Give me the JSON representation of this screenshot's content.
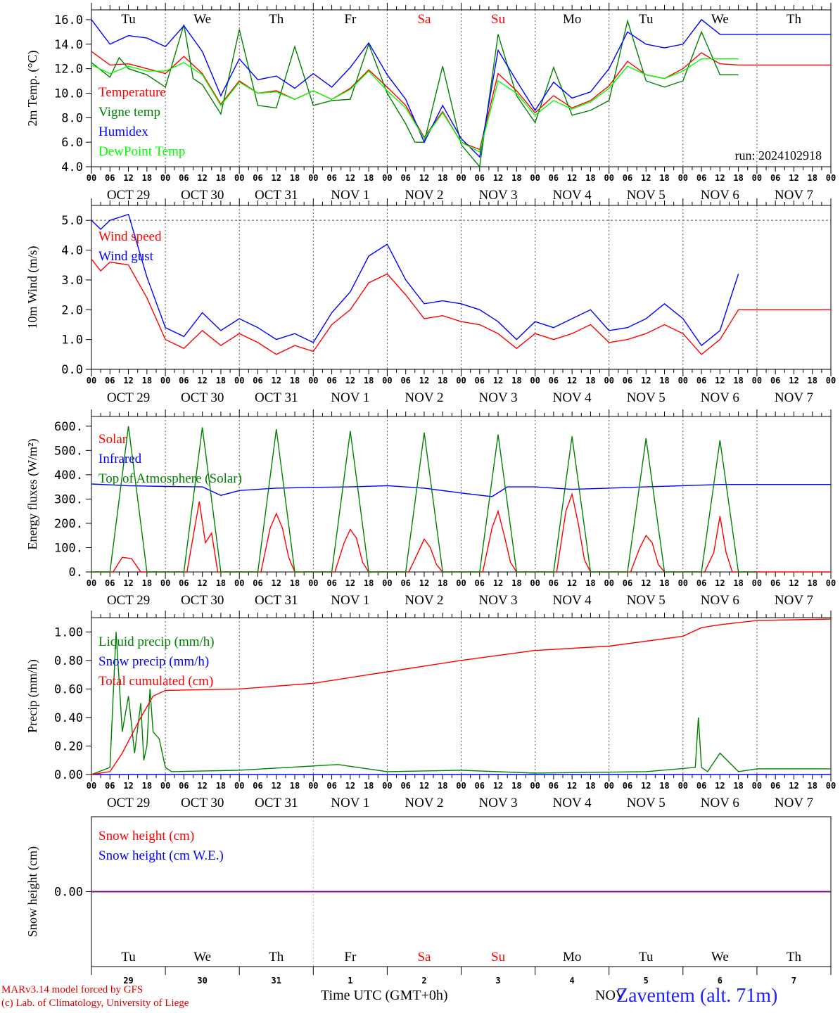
{
  "run_label": "run: 2024102918",
  "day_names": [
    {
      "text": "Tu",
      "color": "#000000"
    },
    {
      "text": "We",
      "color": "#000000"
    },
    {
      "text": "Th",
      "color": "#000000"
    },
    {
      "text": "Fr",
      "color": "#000000"
    },
    {
      "text": "Sa",
      "color": "#ff0000"
    },
    {
      "text": "Su",
      "color": "#ff0000"
    },
    {
      "text": "Mo",
      "color": "#000000"
    },
    {
      "text": "Tu",
      "color": "#000000"
    },
    {
      "text": "We",
      "color": "#000000"
    },
    {
      "text": "Th",
      "color": "#000000"
    }
  ],
  "date_labels": [
    "OCT 29",
    "OCT 30",
    "OCT 31",
    "NOV  1",
    "NOV  2",
    "NOV  3",
    "NOV  4",
    "NOV  5",
    "NOV  6",
    "NOV  7"
  ],
  "hour_ticks": [
    "00",
    "06",
    "12",
    "18"
  ],
  "hour_end": "00",
  "bottom_day_numbers": [
    "29",
    "30",
    "31",
    "1",
    "2",
    "3",
    "4",
    "5",
    "6",
    "7"
  ],
  "footer": {
    "model_line1": "MARv3.14 model forced by GFS",
    "model_line2": "(c) Lab. of Climatology, University of Liege",
    "time_label": "Time UTC (GMT+0h)",
    "month_label": "NOV",
    "station": "Zaventem (alt. 71m)"
  },
  "chart_data": [
    {
      "type": "line",
      "ylabel": "2m Temp. (°C)",
      "ylim": [
        4.0,
        16.8
      ],
      "yticks": [
        "4.0",
        "6.0",
        "8.0",
        "10.0",
        "12.0",
        "14.0",
        "16.0"
      ],
      "ytick_values": [
        4,
        6,
        8,
        10,
        12,
        14,
        16
      ],
      "x_unit": "hours since OCT 29 00 UTC",
      "series": [
        {
          "name": "Temperature",
          "color": "#ff0000",
          "x": [
            0,
            6,
            12,
            18,
            24,
            30,
            36,
            42,
            48,
            54,
            60,
            66,
            72,
            78,
            84,
            90,
            96,
            102,
            108,
            114,
            120,
            126,
            132,
            138,
            144,
            150,
            156,
            162,
            168,
            174,
            180,
            186,
            192,
            198,
            204,
            210,
            216,
            222,
            228,
            234,
            240
          ],
          "y": [
            13.4,
            12.3,
            12.4,
            12.0,
            11.6,
            13.0,
            11.6,
            9.1,
            11.0,
            10.0,
            10.2,
            9.5,
            10.2,
            9.5,
            10.4,
            11.9,
            10.5,
            9.0,
            6.4,
            8.5,
            6.0,
            5.4,
            11.6,
            10.2,
            8.4,
            9.8,
            8.8,
            9.4,
            10.6,
            12.6,
            11.5,
            11.2,
            12.0,
            13.3,
            12.4,
            12.3,
            12.3,
            12.3,
            12.3,
            12.3,
            12.3
          ]
        },
        {
          "name": "Vigne temp",
          "color": "#008000",
          "x": [
            0,
            6,
            9,
            12,
            18,
            24,
            30,
            33,
            36,
            42,
            48,
            54,
            60,
            66,
            72,
            78,
            84,
            90,
            96,
            102,
            105,
            108,
            114,
            120,
            126,
            132,
            138,
            144,
            150,
            156,
            162,
            168,
            174,
            180,
            186,
            192,
            198,
            204,
            210
          ],
          "y": [
            12.5,
            11.3,
            12.9,
            12.0,
            11.5,
            10.5,
            15.6,
            11.2,
            10.7,
            8.3,
            15.2,
            9.0,
            8.8,
            13.8,
            9.0,
            9.4,
            9.5,
            14.0,
            10.0,
            7.5,
            6.0,
            6.0,
            12.2,
            5.8,
            4.0,
            14.8,
            9.8,
            7.6,
            12.1,
            8.2,
            8.6,
            9.4,
            15.9,
            11.0,
            10.5,
            11.0,
            15.0,
            11.5,
            11.5
          ]
        },
        {
          "name": "Humidex",
          "color": "#0000ff",
          "x": [
            0,
            6,
            12,
            18,
            24,
            30,
            36,
            42,
            48,
            54,
            60,
            66,
            72,
            78,
            84,
            90,
            96,
            102,
            108,
            114,
            120,
            126,
            132,
            138,
            144,
            150,
            156,
            162,
            168,
            174,
            180,
            186,
            192,
            198,
            204,
            210,
            216,
            222,
            228,
            234,
            240
          ],
          "y": [
            16.0,
            14.0,
            14.7,
            14.5,
            13.8,
            15.5,
            13.4,
            9.8,
            12.8,
            11.1,
            11.4,
            10.4,
            11.6,
            10.5,
            12.1,
            14.1,
            11.5,
            9.5,
            6.0,
            9.0,
            6.3,
            4.8,
            13.5,
            11.0,
            8.6,
            10.9,
            9.6,
            10.1,
            12.0,
            15.0,
            14.0,
            13.7,
            14.0,
            16.0,
            14.8,
            14.8,
            14.8,
            14.8,
            14.8,
            14.8,
            14.8
          ]
        },
        {
          "name": "DewPoint Temp",
          "color": "#00ff00",
          "x": [
            0,
            6,
            12,
            18,
            24,
            30,
            36,
            42,
            48,
            54,
            60,
            66,
            72,
            78,
            84,
            90,
            96,
            102,
            108,
            114,
            120,
            126,
            132,
            138,
            144,
            150,
            156,
            162,
            168,
            174,
            180,
            186,
            192,
            198,
            204,
            210
          ],
          "y": [
            12.3,
            11.6,
            12.2,
            11.8,
            11.8,
            12.5,
            11.5,
            9.0,
            10.9,
            10.0,
            10.1,
            9.5,
            10.2,
            9.5,
            10.3,
            11.8,
            10.2,
            8.8,
            6.3,
            8.4,
            6.0,
            5.2,
            11.0,
            10.0,
            8.2,
            9.4,
            8.7,
            9.3,
            10.4,
            12.2,
            11.5,
            11.2,
            11.8,
            12.8,
            12.8,
            12.8
          ]
        }
      ]
    },
    {
      "type": "line",
      "ylabel": "10m Wind (m/s)",
      "ylim": [
        0.0,
        5.5
      ],
      "yticks": [
        "0.0",
        "1.0",
        "2.0",
        "3.0",
        "4.0",
        "5.0"
      ],
      "ytick_values": [
        0,
        1,
        2,
        3,
        4,
        5
      ],
      "x_unit": "hours since OCT 29 00 UTC",
      "series": [
        {
          "name": "Wind speed",
          "color": "#ff0000",
          "x": [
            0,
            3,
            6,
            12,
            18,
            24,
            30,
            36,
            42,
            48,
            54,
            60,
            66,
            72,
            78,
            84,
            90,
            96,
            102,
            108,
            114,
            120,
            126,
            132,
            138,
            144,
            150,
            156,
            162,
            168,
            174,
            180,
            186,
            192,
            198,
            204,
            210,
            216,
            222,
            228,
            234,
            240
          ],
          "y": [
            3.7,
            3.3,
            3.6,
            3.5,
            2.4,
            1.0,
            0.7,
            1.3,
            0.8,
            1.2,
            0.9,
            0.5,
            0.8,
            0.6,
            1.5,
            2.0,
            2.9,
            3.2,
            2.5,
            1.7,
            1.8,
            1.6,
            1.5,
            1.2,
            0.7,
            1.2,
            1.0,
            1.2,
            1.5,
            0.9,
            1.0,
            1.2,
            1.5,
            1.2,
            0.5,
            1.0,
            2.0,
            2.0,
            2.0,
            2.0,
            2.0,
            2.0
          ]
        },
        {
          "name": "Wind gust",
          "color": "#0000ff",
          "x": [
            0,
            3,
            6,
            12,
            18,
            24,
            30,
            36,
            42,
            48,
            54,
            60,
            66,
            72,
            78,
            84,
            90,
            96,
            102,
            108,
            114,
            120,
            126,
            132,
            138,
            144,
            150,
            156,
            162,
            168,
            174,
            180,
            186,
            192,
            198,
            204,
            210
          ],
          "y": [
            5.0,
            4.7,
            5.0,
            5.2,
            3.1,
            1.4,
            1.1,
            1.9,
            1.3,
            1.7,
            1.4,
            1.0,
            1.2,
            0.9,
            1.9,
            2.6,
            3.8,
            4.2,
            3.0,
            2.2,
            2.3,
            2.2,
            2.0,
            1.6,
            1.0,
            1.6,
            1.4,
            1.7,
            2.0,
            1.3,
            1.4,
            1.7,
            2.2,
            1.7,
            0.8,
            1.3,
            3.2
          ]
        }
      ]
    },
    {
      "type": "line",
      "ylabel": "Energy fluxes (W/m²)",
      "ylim": [
        0,
        640
      ],
      "yticks": [
        "0.",
        "100.",
        "200.",
        "300.",
        "400.",
        "500.",
        "600."
      ],
      "ytick_values": [
        0,
        100,
        200,
        300,
        400,
        500,
        600
      ],
      "x_unit": "hours since OCT 29 00 UTC",
      "series": [
        {
          "name": "Solar",
          "color": "#ff0000",
          "x": [
            0,
            7,
            10,
            13,
            16,
            24,
            31,
            35,
            37,
            39,
            41,
            55,
            58,
            60,
            62,
            64,
            66,
            79,
            82,
            84,
            86,
            88,
            90,
            103,
            106,
            108,
            110,
            112,
            114,
            127,
            130,
            132,
            134,
            136,
            138,
            151,
            154,
            156,
            158,
            160,
            162,
            175,
            178,
            180,
            182,
            184,
            186,
            199,
            202,
            204,
            206,
            208,
            210,
            240
          ],
          "y": [
            0,
            0,
            60,
            55,
            0,
            0,
            0,
            290,
            120,
            160,
            0,
            0,
            180,
            240,
            180,
            60,
            0,
            0,
            120,
            175,
            140,
            40,
            0,
            0,
            80,
            135,
            100,
            30,
            0,
            0,
            180,
            250,
            150,
            40,
            0,
            0,
            250,
            320,
            200,
            50,
            0,
            0,
            100,
            150,
            120,
            30,
            0,
            0,
            80,
            230,
            80,
            0,
            0,
            0
          ]
        },
        {
          "name": "Infrared",
          "color": "#0000ff",
          "x": [
            0,
            12,
            24,
            36,
            42,
            48,
            60,
            72,
            84,
            96,
            108,
            120,
            130,
            135,
            144,
            156,
            168,
            180,
            192,
            204,
            216,
            228,
            240
          ],
          "y": [
            362,
            355,
            352,
            350,
            315,
            335,
            345,
            348,
            350,
            355,
            345,
            325,
            310,
            350,
            350,
            340,
            345,
            350,
            355,
            360,
            360,
            360,
            360
          ]
        },
        {
          "name": "Top of Atmosphere (Solar)",
          "color": "#008000",
          "x": [
            0,
            6,
            12,
            18,
            24,
            30,
            36,
            42,
            48,
            54,
            60,
            66,
            72,
            78,
            84,
            90,
            96,
            102,
            108,
            114,
            120,
            126,
            132,
            138,
            144,
            150,
            156,
            162,
            168,
            174,
            180,
            186,
            192,
            198,
            204,
            210,
            216
          ],
          "y": [
            0,
            0,
            600,
            0,
            0,
            0,
            595,
            0,
            0,
            0,
            588,
            0,
            0,
            0,
            580,
            0,
            0,
            0,
            573,
            0,
            0,
            0,
            566,
            0,
            0,
            0,
            558,
            0,
            0,
            0,
            550,
            0,
            0,
            0,
            542,
            0,
            0
          ]
        }
      ]
    },
    {
      "type": "line",
      "ylabel": "Precip (mm/h)",
      "ylim": [
        0.0,
        1.1
      ],
      "yticks": [
        "0.00",
        "0.20",
        "0.40",
        "0.60",
        "0.80",
        "1.00"
      ],
      "ytick_values": [
        0,
        0.2,
        0.4,
        0.6,
        0.8,
        1.0
      ],
      "x_unit": "hours since OCT 29 00 UTC",
      "series": [
        {
          "name": "Liquid precip (mm/h)",
          "color": "#008000",
          "x": [
            0,
            6,
            8,
            10,
            12,
            14,
            16,
            17,
            18,
            19,
            20,
            22,
            24,
            26,
            48,
            80,
            96,
            120,
            144,
            180,
            196,
            197,
            198,
            200,
            204,
            210,
            216,
            240
          ],
          "y": [
            0.0,
            0.05,
            1.0,
            0.3,
            0.55,
            0.15,
            0.5,
            0.1,
            0.2,
            0.6,
            0.3,
            0.25,
            0.05,
            0.02,
            0.03,
            0.07,
            0.02,
            0.03,
            0.01,
            0.02,
            0.05,
            0.4,
            0.05,
            0.02,
            0.15,
            0.02,
            0.04,
            0.04
          ]
        },
        {
          "name": "Snow precip (mm/h)",
          "color": "#0000ff",
          "x": [
            0,
            240
          ],
          "y": [
            0.0,
            0.0
          ]
        },
        {
          "name": "Total cumulated (cm)",
          "color": "#ff0000",
          "x": [
            0,
            6,
            10,
            16,
            20,
            24,
            48,
            72,
            96,
            120,
            144,
            168,
            192,
            198,
            204,
            216,
            240
          ],
          "y": [
            0.0,
            0.02,
            0.15,
            0.4,
            0.55,
            0.59,
            0.6,
            0.64,
            0.72,
            0.8,
            0.87,
            0.9,
            0.97,
            1.03,
            1.05,
            1.08,
            1.09
          ]
        }
      ]
    },
    {
      "type": "line",
      "ylabel": "Snow height (cm)",
      "ylim": [
        -1,
        1
      ],
      "yticks": [
        "0.00"
      ],
      "ytick_values": [
        0
      ],
      "x_unit": "hours since OCT 29 00 UTC",
      "series": [
        {
          "name": "Snow height (cm)",
          "color": "#ff0000",
          "x": [
            0,
            240
          ],
          "y": [
            0.0,
            0.0
          ]
        },
        {
          "name": "Snow height (cm W.E.)",
          "color": "#0000ff",
          "x": [
            0,
            240
          ],
          "y": [
            0.0,
            0.0
          ]
        }
      ]
    }
  ]
}
